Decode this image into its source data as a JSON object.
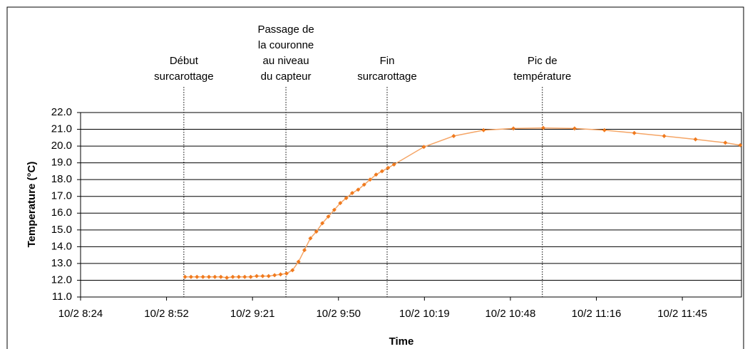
{
  "chart_data": {
    "type": "line",
    "x_label": "Time",
    "y_label": "Temperature (°C)",
    "x": [
      539,
      541,
      543,
      545,
      547,
      549,
      551,
      553,
      555,
      557,
      559,
      561,
      563,
      565,
      567,
      569,
      571,
      573,
      575,
      577,
      579,
      581,
      583,
      585,
      587,
      589,
      591,
      593,
      595,
      597,
      599,
      601,
      603,
      605,
      607,
      609,
      619,
      629,
      639,
      649,
      659,
      669.5,
      679.5,
      689.5,
      699.5,
      710,
      720,
      725
    ],
    "series": [
      {
        "color": "#f07a1e",
        "values": [
          12.2,
          12.2,
          12.2,
          12.2,
          12.2,
          12.2,
          12.2,
          12.15,
          12.2,
          12.2,
          12.2,
          12.2,
          12.25,
          12.25,
          12.25,
          12.3,
          12.35,
          12.4,
          12.6,
          13.1,
          13.8,
          14.5,
          14.9,
          15.4,
          15.8,
          16.2,
          16.6,
          16.9,
          17.2,
          17.4,
          17.7,
          18.0,
          18.3,
          18.5,
          18.7,
          18.9,
          19.95,
          20.6,
          20.95,
          21.05,
          21.08,
          21.05,
          20.95,
          20.78,
          20.6,
          20.4,
          20.2,
          20.05
        ]
      }
    ],
    "xlim": [
      504,
      725.4
    ],
    "xticks": [
      {
        "value": 504,
        "label": "10/2 8:24"
      },
      {
        "value": 532.8,
        "label": "10/2 8:52"
      },
      {
        "value": 561.6,
        "label": "10/2 9:21"
      },
      {
        "value": 590.4,
        "label": "10/2 9:50"
      },
      {
        "value": 619.2,
        "label": "10/2 10:19"
      },
      {
        "value": 648,
        "label": "10/2 10:48"
      },
      {
        "value": 676.8,
        "label": "10/2 11:16"
      },
      {
        "value": 705.6,
        "label": "10/2 11:45"
      }
    ],
    "ylim": [
      11,
      22
    ],
    "yticks": [
      {
        "value": 11,
        "label": "11.0"
      },
      {
        "value": 12,
        "label": "12.0"
      },
      {
        "value": 13,
        "label": "13.0"
      },
      {
        "value": 14,
        "label": "14.0"
      },
      {
        "value": 15,
        "label": "15.0"
      },
      {
        "value": 16,
        "label": "16.0"
      },
      {
        "value": 17,
        "label": "17.0"
      },
      {
        "value": 18,
        "label": "18.0"
      },
      {
        "value": 19,
        "label": "19.0"
      },
      {
        "value": 20,
        "label": "20.0"
      },
      {
        "value": 21,
        "label": "21.0"
      },
      {
        "value": 22,
        "label": "22.0"
      }
    ],
    "grid": true,
    "annotations": [
      {
        "x": 538.6,
        "lines": [
          "Début",
          "surcarottage"
        ]
      },
      {
        "x": 572.8,
        "lines": [
          "Passage de",
          "la couronne",
          "au niveau",
          "du capteur"
        ]
      },
      {
        "x": 606.7,
        "lines": [
          "Fin",
          "surcarottage"
        ]
      },
      {
        "x": 658.7,
        "lines": [
          "Pic de",
          "température"
        ]
      }
    ]
  }
}
